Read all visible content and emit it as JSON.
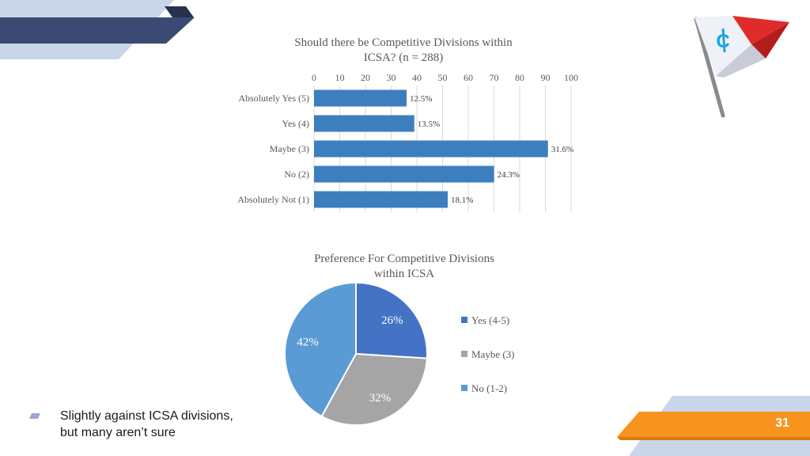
{
  "slide": {
    "page_number": "31",
    "caption_line1": "Slightly against ICSA divisions,",
    "caption_line2": "but many aren’t sure",
    "logo_icon": "icsa-pennant-flag",
    "colors": {
      "navy_band": "#3a4a72",
      "light_band": "#c5d3e8",
      "orange_band": "#f7941d",
      "flag_red": "#e02b2b",
      "flag_blue": "#1aa3e8",
      "bullet": "#9aa9c8"
    }
  },
  "chart_data": [
    {
      "type": "bar",
      "orientation": "horizontal",
      "title": "Should there be Competitive Divisions within ICSA? (n = 288)",
      "title_lines": [
        "Should there be Competitive Divisions within",
        "ICSA? (n = 288)"
      ],
      "categories": [
        "Absolutely Yes (5)",
        "Yes (4)",
        "Maybe (3)",
        "No (2)",
        "Absolutely Not (1)"
      ],
      "values": [
        36,
        39,
        91,
        70,
        52
      ],
      "data_labels": [
        "12.5%",
        "13.5%",
        "31.6%",
        "24.3%",
        "18.1%"
      ],
      "xlim": [
        0,
        100
      ],
      "xticks": [
        "0",
        "10",
        "20",
        "30",
        "40",
        "50",
        "60",
        "70",
        "80",
        "90",
        "100"
      ],
      "axis_position": "top",
      "grid": true,
      "color": "#3d7ebf"
    },
    {
      "type": "pie",
      "title": "Preference For Competitive Divisions within ICSA",
      "title_lines": [
        "Preference For Competitive Divisions",
        "within ICSA"
      ],
      "slices": [
        {
          "label": "Yes (4-5)",
          "value": 26,
          "display": "26%",
          "color": "#4472c4"
        },
        {
          "label": "Maybe (3)",
          "value": 32,
          "display": "32%",
          "color": "#a5a5a5"
        },
        {
          "label": "No (1-2)",
          "value": 42,
          "display": "42%",
          "color": "#5b9bd5"
        }
      ],
      "legend_position": "right"
    }
  ]
}
